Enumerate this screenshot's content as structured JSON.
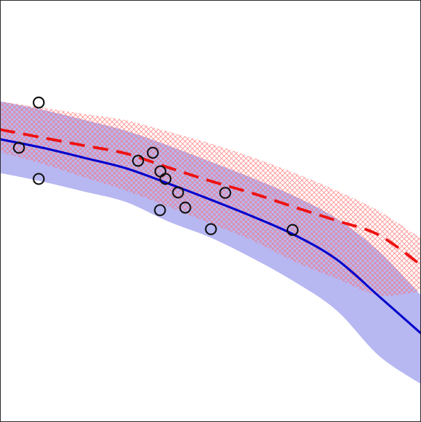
{
  "chart_data": {
    "type": "scatter",
    "title": "",
    "xlabel": "",
    "ylabel": "",
    "grid": false,
    "legend": "none",
    "xlim": [
      0,
      1
    ],
    "ylim": [
      0,
      1
    ],
    "points": [
      {
        "x": 0.045,
        "y": 0.65
      },
      {
        "x": 0.092,
        "y": 0.757
      },
      {
        "x": 0.092,
        "y": 0.576
      },
      {
        "x": 0.328,
        "y": 0.619
      },
      {
        "x": 0.363,
        "y": 0.638
      },
      {
        "x": 0.381,
        "y": 0.594
      },
      {
        "x": 0.393,
        "y": 0.576
      },
      {
        "x": 0.423,
        "y": 0.544
      },
      {
        "x": 0.38,
        "y": 0.502
      },
      {
        "x": 0.44,
        "y": 0.508
      },
      {
        "x": 0.535,
        "y": 0.543
      },
      {
        "x": 0.501,
        "y": 0.457
      },
      {
        "x": 0.695,
        "y": 0.455
      }
    ],
    "series": [
      {
        "style": "solid",
        "color": "#0000cc",
        "band_color": "#aaaaf0",
        "x": [
          0.0,
          0.1,
          0.2,
          0.3,
          0.4,
          0.5,
          0.6,
          0.7,
          0.8,
          0.9,
          1.0
        ],
        "y": [
          0.67,
          0.65,
          0.626,
          0.601,
          0.565,
          0.527,
          0.487,
          0.443,
          0.385,
          0.298,
          0.21
        ],
        "lower": [
          0.59,
          0.57,
          0.546,
          0.521,
          0.475,
          0.437,
          0.388,
          0.332,
          0.264,
          0.157,
          0.09
        ],
        "upper": [
          0.76,
          0.74,
          0.716,
          0.69,
          0.655,
          0.617,
          0.578,
          0.535,
          0.482,
          0.405,
          0.3
        ]
      },
      {
        "style": "dashed",
        "color": "#ee1111",
        "band_color": "#ff7777",
        "x": [
          0.0,
          0.1,
          0.2,
          0.3,
          0.4,
          0.5,
          0.6,
          0.7,
          0.8,
          0.9,
          1.0
        ],
        "y": [
          0.693,
          0.674,
          0.655,
          0.636,
          0.603,
          0.571,
          0.542,
          0.509,
          0.477,
          0.443,
          0.372
        ],
        "lower": [
          0.64,
          0.612,
          0.58,
          0.548,
          0.51,
          0.47,
          0.43,
          0.38,
          0.34,
          0.3,
          0.31
        ],
        "upper": [
          0.76,
          0.745,
          0.73,
          0.715,
          0.688,
          0.66,
          0.627,
          0.59,
          0.548,
          0.5,
          0.435
        ]
      }
    ]
  }
}
